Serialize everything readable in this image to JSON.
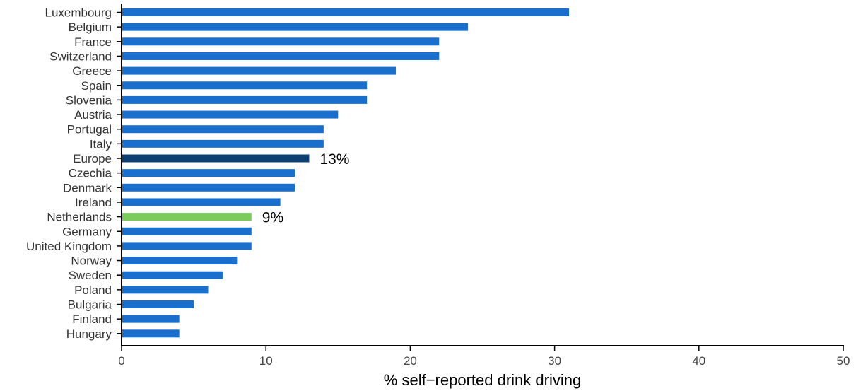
{
  "chart_data": {
    "type": "bar",
    "orientation": "horizontal",
    "categories": [
      "Luxembourg",
      "Belgium",
      "France",
      "Switzerland",
      "Greece",
      "Spain",
      "Slovenia",
      "Austria",
      "Portugal",
      "Italy",
      "Europe",
      "Czechia",
      "Denmark",
      "Ireland",
      "Netherlands",
      "Germany",
      "United Kingdom",
      "Norway",
      "Sweden",
      "Poland",
      "Bulgaria",
      "Finland",
      "Hungary"
    ],
    "values": [
      31,
      24,
      22,
      22,
      19,
      17,
      17,
      15,
      14,
      14,
      13,
      12,
      12,
      11,
      9,
      9,
      9,
      8,
      7,
      6,
      5,
      4,
      4
    ],
    "xlabel": "% self−reported drink driving",
    "ylabel": "",
    "xlim": [
      0,
      50
    ],
    "xticks": [
      0,
      10,
      20,
      30,
      40,
      50
    ],
    "grid": false,
    "colors": {
      "default": "#1a6fcc",
      "Europe": "#0d3f73",
      "Netherlands": "#7acb5c",
      "axis": "#000000",
      "text": "#333333"
    },
    "data_labels": [
      {
        "category": "Europe",
        "text": "13%"
      },
      {
        "category": "Netherlands",
        "text": "9%"
      }
    ]
  }
}
